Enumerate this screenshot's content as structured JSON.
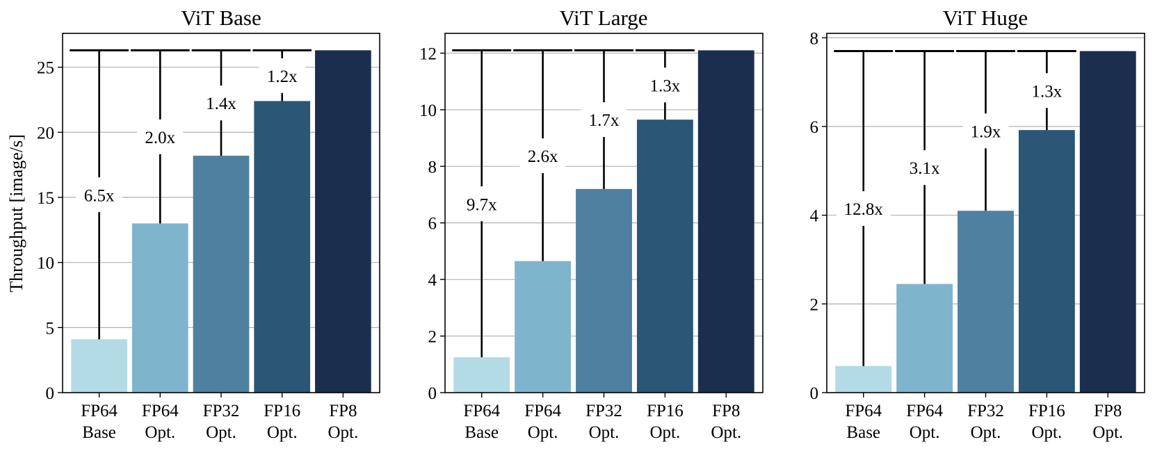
{
  "ylabel": "Throughput [image/s]",
  "colors": [
    "#b3dbe5",
    "#7fb5cc",
    "#4f809f",
    "#2b5676",
    "#1c2e4d"
  ],
  "chart_data": [
    {
      "type": "bar",
      "title": "ViT Base",
      "categories": [
        "FP64\nBase",
        "FP64\nOpt.",
        "FP32\nOpt.",
        "FP16\nOpt.",
        "FP8\nOpt."
      ],
      "values": [
        4.1,
        13.0,
        18.2,
        22.4,
        26.3
      ],
      "speedups": [
        "6.5x",
        "2.0x",
        "1.4x",
        "1.2x"
      ],
      "ylim": [
        0,
        27.6
      ],
      "yticks": [
        0,
        5,
        10,
        15,
        20,
        25
      ]
    },
    {
      "type": "bar",
      "title": "ViT Large",
      "categories": [
        "FP64\nBase",
        "FP64\nOpt.",
        "FP32\nOpt.",
        "FP16\nOpt.",
        "FP8\nOpt."
      ],
      "values": [
        1.25,
        4.65,
        7.2,
        9.65,
        12.1
      ],
      "speedups": [
        "9.7x",
        "2.6x",
        "1.7x",
        "1.3x"
      ],
      "ylim": [
        0,
        12.7
      ],
      "yticks": [
        0,
        2,
        4,
        6,
        8,
        10,
        12
      ]
    },
    {
      "type": "bar",
      "title": "ViT Huge",
      "categories": [
        "FP64\nBase",
        "FP64\nOpt.",
        "FP32\nOpt.",
        "FP16\nOpt.",
        "FP8\nOpt."
      ],
      "values": [
        0.6,
        2.45,
        4.1,
        5.92,
        7.7
      ],
      "speedups": [
        "12.8x",
        "3.1x",
        "1.9x",
        "1.3x"
      ],
      "ylim": [
        0,
        8.1
      ],
      "yticks": [
        0,
        2,
        4,
        6,
        8
      ]
    }
  ]
}
